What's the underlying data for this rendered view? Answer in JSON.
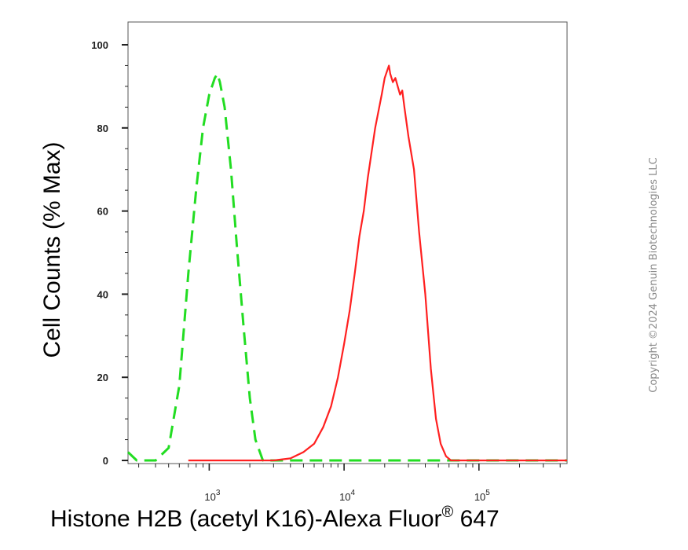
{
  "copyright": "Copyright ©2024 Genuin Biotechnologies LLC",
  "chart_data": {
    "type": "line",
    "xlabel_main": "Histone H2B (acetyl K16)-Alexa Fluor",
    "xlabel_sup": "®",
    "xlabel_tail": " 647",
    "ylabel": "Cell Counts (% Max)",
    "x_scale": "log",
    "xlim": [
      250,
      450000
    ],
    "ylim": [
      0,
      100
    ],
    "y_ticks": [
      0,
      20,
      40,
      60,
      80,
      100
    ],
    "x_ticks": [
      {
        "value": 1000,
        "base": "10",
        "exp": "3"
      },
      {
        "value": 10000,
        "base": "10",
        "exp": "4"
      },
      {
        "value": 100000,
        "base": "10",
        "exp": "5"
      }
    ],
    "grid": false,
    "legend": "none",
    "series": [
      {
        "color": "#22dd22",
        "style": "dashed",
        "points": [
          [
            250,
            2
          ],
          [
            290,
            0
          ],
          [
            400,
            0
          ],
          [
            500,
            3
          ],
          [
            600,
            18
          ],
          [
            700,
            45
          ],
          [
            800,
            65
          ],
          [
            900,
            80
          ],
          [
            1000,
            88
          ],
          [
            1100,
            92
          ],
          [
            1150,
            93
          ],
          [
            1200,
            91
          ],
          [
            1300,
            85
          ],
          [
            1450,
            70
          ],
          [
            1600,
            52
          ],
          [
            1800,
            32
          ],
          [
            2000,
            15
          ],
          [
            2200,
            5
          ],
          [
            2500,
            0
          ],
          [
            10000,
            0
          ],
          [
            100000,
            0
          ],
          [
            450000,
            0
          ]
        ]
      },
      {
        "color": "#ff2020",
        "style": "solid",
        "points": [
          [
            700,
            0
          ],
          [
            800,
            0
          ],
          [
            1000,
            0
          ],
          [
            2000,
            0
          ],
          [
            3000,
            0
          ],
          [
            4000,
            0.5
          ],
          [
            5000,
            2
          ],
          [
            6000,
            4
          ],
          [
            7000,
            8
          ],
          [
            8000,
            13
          ],
          [
            9000,
            20
          ],
          [
            10000,
            28
          ],
          [
            11000,
            36
          ],
          [
            12000,
            45
          ],
          [
            13000,
            54
          ],
          [
            14000,
            60
          ],
          [
            15000,
            68
          ],
          [
            17000,
            80
          ],
          [
            19000,
            88
          ],
          [
            20000,
            92
          ],
          [
            21000,
            94
          ],
          [
            21500,
            95
          ],
          [
            22000,
            93
          ],
          [
            23000,
            91
          ],
          [
            24000,
            92
          ],
          [
            25000,
            90
          ],
          [
            26000,
            88
          ],
          [
            27000,
            89
          ],
          [
            28000,
            85
          ],
          [
            30000,
            78
          ],
          [
            33000,
            70
          ],
          [
            36000,
            55
          ],
          [
            40000,
            40
          ],
          [
            44000,
            22
          ],
          [
            48000,
            10
          ],
          [
            52000,
            4
          ],
          [
            57000,
            1
          ],
          [
            62000,
            0
          ],
          [
            100000,
            0
          ],
          [
            450000,
            0
          ]
        ]
      }
    ]
  }
}
